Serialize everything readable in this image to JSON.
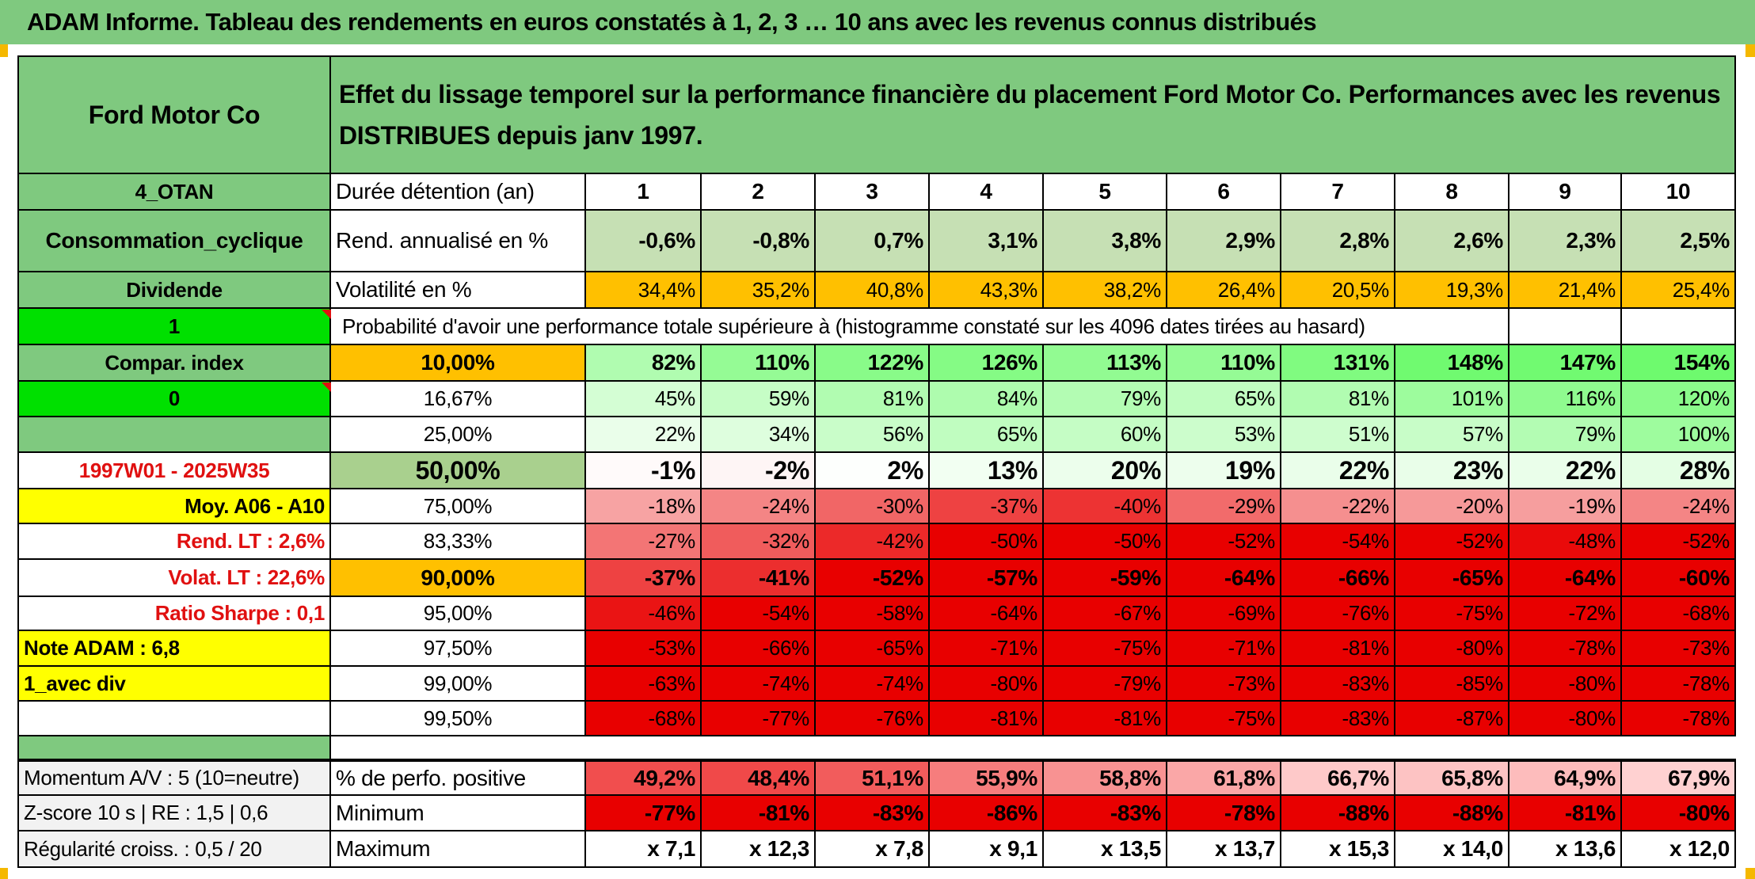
{
  "banner": "ADAM Informe. Tableau des rendements en euros constatés à 1, 2, 3 … 10 ans avec les revenus connus distribués",
  "left": {
    "name": "Ford Motor Co",
    "code": "4_OTAN",
    "sector": "Consommation_cyclique",
    "type": "Dividende",
    "flag1": "1",
    "compar": "Compar. index",
    "flag0": "0",
    "period": "1997W01 - 2025W35",
    "moy": "Moy. A06 - A10",
    "rend_lt": "Rend. LT :    2,6%",
    "volat_lt": "Volat. LT :    22,6%",
    "sharpe": "Ratio Sharpe :    0,1",
    "note": "Note ADAM : 6,8",
    "variant": "1_avec div",
    "momentum": "Momentum A/V : 5 (10=neutre)",
    "zscore": "Z-score 10 s | RE : 1,5 | 0,6",
    "regularite": "Régularité croiss. : 0,5 / 20"
  },
  "title": "Effet du lissage temporel sur la performance financière du placement Ford Motor Co. Performances avec les revenus DISTRIBUES depuis janv 1997.",
  "labels": {
    "duree": "Durée détention (an)",
    "rend": "Rend. annualisé en %",
    "vol": "Volatilité en %",
    "proba": "Probabilité d'avoir une performance totale supérieure à (histogramme constaté sur les 4096 dates tirées au hasard)",
    "pos": "% de perfo. positive",
    "min": "Minimum",
    "max": "Maximum"
  },
  "years": [
    "1",
    "2",
    "3",
    "4",
    "5",
    "6",
    "7",
    "8",
    "9",
    "10"
  ],
  "rend": [
    "-0,6%",
    "-0,8%",
    "0,7%",
    "3,1%",
    "3,8%",
    "2,9%",
    "2,8%",
    "2,6%",
    "2,3%",
    "2,5%"
  ],
  "vol": [
    "34,4%",
    "35,2%",
    "40,8%",
    "43,3%",
    "38,2%",
    "26,4%",
    "20,5%",
    "19,3%",
    "21,4%",
    "25,4%"
  ],
  "perc_rows": [
    {
      "p": "10,00%",
      "v": [
        "82%",
        "110%",
        "122%",
        "126%",
        "113%",
        "110%",
        "131%",
        "148%",
        "147%",
        "154%"
      ]
    },
    {
      "p": "16,67%",
      "v": [
        "45%",
        "59%",
        "81%",
        "84%",
        "79%",
        "65%",
        "81%",
        "101%",
        "116%",
        "120%"
      ]
    },
    {
      "p": "25,00%",
      "v": [
        "22%",
        "34%",
        "56%",
        "65%",
        "60%",
        "53%",
        "51%",
        "57%",
        "79%",
        "100%"
      ]
    },
    {
      "p": "50,00%",
      "v": [
        "-1%",
        "-2%",
        "2%",
        "13%",
        "20%",
        "19%",
        "22%",
        "23%",
        "22%",
        "28%"
      ]
    },
    {
      "p": "75,00%",
      "v": [
        "-18%",
        "-24%",
        "-30%",
        "-37%",
        "-40%",
        "-29%",
        "-22%",
        "-20%",
        "-19%",
        "-24%"
      ]
    },
    {
      "p": "83,33%",
      "v": [
        "-27%",
        "-32%",
        "-42%",
        "-50%",
        "-50%",
        "-52%",
        "-54%",
        "-52%",
        "-48%",
        "-52%"
      ]
    },
    {
      "p": "90,00%",
      "v": [
        "-37%",
        "-41%",
        "-52%",
        "-57%",
        "-59%",
        "-64%",
        "-66%",
        "-65%",
        "-64%",
        "-60%"
      ]
    },
    {
      "p": "95,00%",
      "v": [
        "-46%",
        "-54%",
        "-58%",
        "-64%",
        "-67%",
        "-69%",
        "-76%",
        "-75%",
        "-72%",
        "-68%"
      ]
    },
    {
      "p": "97,50%",
      "v": [
        "-53%",
        "-66%",
        "-65%",
        "-71%",
        "-75%",
        "-71%",
        "-81%",
        "-80%",
        "-78%",
        "-73%"
      ]
    },
    {
      "p": "99,00%",
      "v": [
        "-63%",
        "-74%",
        "-74%",
        "-80%",
        "-79%",
        "-73%",
        "-83%",
        "-85%",
        "-80%",
        "-78%"
      ]
    },
    {
      "p": "99,50%",
      "v": [
        "-68%",
        "-77%",
        "-76%",
        "-81%",
        "-81%",
        "-75%",
        "-83%",
        "-87%",
        "-80%",
        "-78%"
      ]
    }
  ],
  "pos": [
    "49,2%",
    "48,4%",
    "51,1%",
    "55,9%",
    "58,8%",
    "61,8%",
    "66,7%",
    "65,8%",
    "64,9%",
    "67,9%"
  ],
  "min": [
    "-77%",
    "-81%",
    "-83%",
    "-86%",
    "-83%",
    "-78%",
    "-88%",
    "-88%",
    "-81%",
    "-80%"
  ],
  "max": [
    "x 7,1",
    "x 12,3",
    "x 7,8",
    "x 9,1",
    "x 13,5",
    "x 13,7",
    "x 15,3",
    "x 14,0",
    "x 13,6",
    "x 12,0"
  ],
  "colors": {
    "green_header": "#7fc97f",
    "bright_green": "#00e000",
    "orange": "#ffc000",
    "yellow": "#ffff00",
    "rend_bg": "#c6e0b4",
    "red_text": "#e01010"
  }
}
